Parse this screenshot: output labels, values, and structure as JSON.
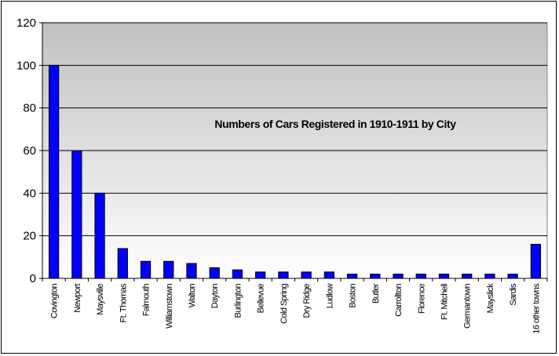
{
  "chart_data": {
    "type": "bar",
    "title": "Numbers of Cars Registered in 1910-1911 by City",
    "xlabel": "",
    "ylabel": "",
    "ylim": [
      0,
      120
    ],
    "yticks": [
      0,
      20,
      40,
      60,
      80,
      100,
      120
    ],
    "grid": true,
    "legend": "none",
    "categories": [
      "Covington",
      "Newport",
      "Maysville",
      "Ft. Thomas",
      "Falmouth",
      "Williamstown",
      "Walton",
      "Dayton",
      "Burlington",
      "Bellevue",
      "Cold Spring",
      "Dry Ridge",
      "Ludlow",
      "Boston",
      "Butler",
      "Carrollton",
      "Florence",
      "Ft. Mitchell",
      "Germantown",
      "Mayslick",
      "Sardis",
      "16 other towns"
    ],
    "values": [
      100,
      60,
      40,
      14,
      8,
      8,
      7,
      5,
      4,
      3,
      3,
      3,
      3,
      2,
      2,
      2,
      2,
      2,
      2,
      2,
      2,
      16
    ],
    "colors": {
      "bar": "#0000ff",
      "bar_edge": "#000000",
      "plot_top": "#c0c0c0",
      "plot_bottom": "#ffffff",
      "grid": "#000000"
    }
  }
}
